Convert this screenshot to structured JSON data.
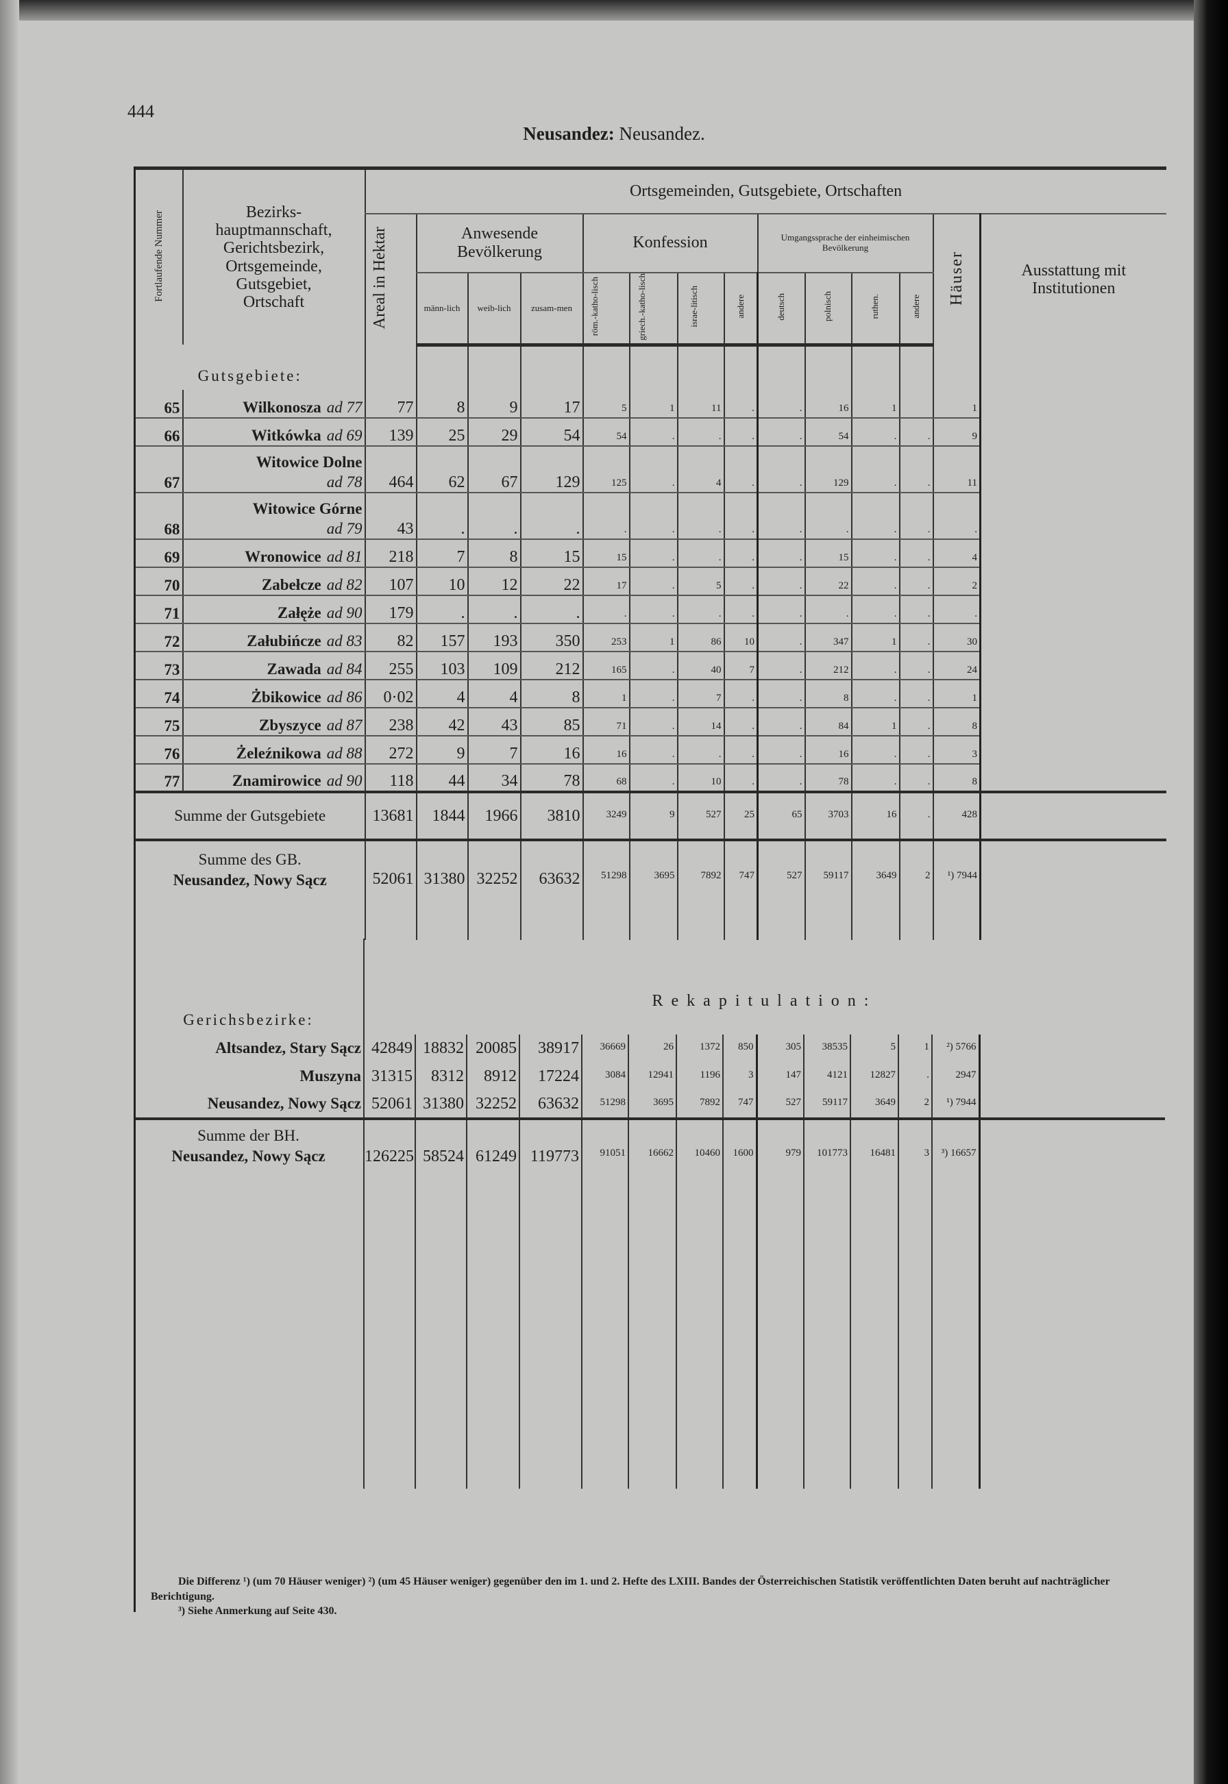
{
  "page_number": "444",
  "title": {
    "district": "Neusandez:",
    "court": "Neusandez."
  },
  "header": {
    "nr": "Fortlaufende Nummer",
    "name": [
      "Bezirks-",
      "hauptmannschaft,",
      "Gerichtsbezirk,",
      "Ortsgemeinde,",
      "Gutsgebiet,",
      "Ortschaft"
    ],
    "group": "Ortsgemeinden, Gutsgebiete, Ortschaften",
    "areal": "Areal in Hektar",
    "population": "Anwesende Bevölkerung",
    "pop_cols": [
      "männ-lich",
      "weib-lich",
      "zusam-men"
    ],
    "confession": "Konfession",
    "conf_cols": [
      "röm.-katho-lisch",
      "griech.-katho-lisch",
      "israe-litisch",
      "andere"
    ],
    "language": "Umgangssprache der einheimischen Bevölkerung",
    "lang_cols": [
      "deutsch",
      "polnisch",
      "ruthen.",
      "andere"
    ],
    "houses": "Häuser",
    "institutions": "Ausstattung mit Institutionen"
  },
  "section_label": "Gutsgebiete:",
  "rows": [
    {
      "nr": "65",
      "name": "Wilkonosza",
      "ad": "ad 77",
      "values": [
        "77",
        "8",
        "9",
        "17",
        "5",
        "1",
        "11",
        ".",
        ".",
        "16",
        "1",
        "",
        "1"
      ]
    },
    {
      "nr": "66",
      "name": "Witkówka",
      "ad": "ad 69",
      "values": [
        "139",
        "25",
        "29",
        "54",
        "54",
        ".",
        ".",
        ".",
        ".",
        "54",
        ".",
        ".",
        "9"
      ]
    },
    {
      "nr": "67",
      "name": "Witowice Dolne",
      "ad": "ad 78",
      "values": [
        "464",
        "62",
        "67",
        "129",
        "125",
        ".",
        "4",
        ".",
        ".",
        "129",
        ".",
        ".",
        "11"
      ]
    },
    {
      "nr": "68",
      "name": "Witowice Górne",
      "ad": "ad 79",
      "values": [
        "43",
        ".",
        ".",
        ".",
        ".",
        ".",
        ".",
        ".",
        ".",
        ".",
        ".",
        ".",
        "."
      ]
    },
    {
      "nr": "69",
      "name": "Wronowice",
      "ad": "ad 81",
      "values": [
        "218",
        "7",
        "8",
        "15",
        "15",
        ".",
        ".",
        ".",
        ".",
        "15",
        ".",
        ".",
        "4"
      ]
    },
    {
      "nr": "70",
      "name": "Zabełcze",
      "ad": "ad 82",
      "values": [
        "107",
        "10",
        "12",
        "22",
        "17",
        ".",
        "5",
        ".",
        ".",
        "22",
        ".",
        ".",
        "2"
      ]
    },
    {
      "nr": "71",
      "name": "Załęże",
      "ad": "ad 90",
      "values": [
        "179",
        ".",
        ".",
        ".",
        ".",
        ".",
        ".",
        ".",
        ".",
        ".",
        ".",
        ".",
        "."
      ]
    },
    {
      "nr": "72",
      "name": "Załubińcze",
      "ad": "ad 83",
      "values": [
        "82",
        "157",
        "193",
        "350",
        "253",
        "1",
        "86",
        "10",
        ".",
        "347",
        "1",
        ".",
        "30"
      ]
    },
    {
      "nr": "73",
      "name": "Zawada",
      "ad": "ad 84",
      "values": [
        "255",
        "103",
        "109",
        "212",
        "165",
        ".",
        "40",
        "7",
        ".",
        "212",
        ".",
        ".",
        "24"
      ]
    },
    {
      "nr": "74",
      "name": "Żbikowice",
      "ad": "ad 86",
      "values": [
        "0·02",
        "4",
        "4",
        "8",
        "1",
        ".",
        "7",
        ".",
        ".",
        "8",
        ".",
        ".",
        "1"
      ]
    },
    {
      "nr": "75",
      "name": "Zbyszyce",
      "ad": "ad 87",
      "values": [
        "238",
        "42",
        "43",
        "85",
        "71",
        ".",
        "14",
        ".",
        ".",
        "84",
        "1",
        ".",
        "8"
      ]
    },
    {
      "nr": "76",
      "name": "Żeleźnikowa",
      "ad": "ad 88",
      "values": [
        "272",
        "9",
        "7",
        "16",
        "16",
        ".",
        ".",
        ".",
        ".",
        "16",
        ".",
        ".",
        "3"
      ]
    },
    {
      "nr": "77",
      "name": "Znamirowice",
      "ad": "ad 90",
      "values": [
        "118",
        "44",
        "34",
        "78",
        "68",
        ".",
        "10",
        ".",
        ".",
        "78",
        ".",
        ".",
        "8"
      ]
    }
  ],
  "sum_gutsgebiete": {
    "label": "Summe der Gutsgebiete",
    "values": [
      "13681",
      "1844",
      "1966",
      "3810",
      "3249",
      "9",
      "527",
      "25",
      "65",
      "3703",
      "16",
      ".",
      "428"
    ]
  },
  "sum_gb": {
    "label": [
      "Summe des GB.",
      "Neusandez, Nowy Sącz"
    ],
    "values": [
      "52061",
      "31380",
      "32252",
      "63632",
      "51298",
      "3695",
      "7892",
      "747",
      "527",
      "59117",
      "3649",
      "2",
      "¹) 7944"
    ]
  },
  "recap": {
    "title": "Rekapitulation:",
    "label": "Gerichsbezirke:",
    "rows": [
      {
        "name": "Altsandez, Stary Sącz",
        "values": [
          "42849",
          "18832",
          "20085",
          "38917",
          "36669",
          "26",
          "1372",
          "850",
          "305",
          "38535",
          "5",
          "1",
          "²) 5766"
        ]
      },
      {
        "name": "Muszyna",
        "values": [
          "31315",
          "8312",
          "8912",
          "17224",
          "3084",
          "12941",
          "1196",
          "3",
          "147",
          "4121",
          "12827",
          ".",
          "2947"
        ]
      },
      {
        "name": "Neusandez, Nowy Sącz",
        "values": [
          "52061",
          "31380",
          "32252",
          "63632",
          "51298",
          "3695",
          "7892",
          "747",
          "527",
          "59117",
          "3649",
          "2",
          "¹) 7944"
        ]
      }
    ],
    "sum": {
      "label": [
        "Summe der BH.",
        "Neusandez, Nowy Sącz"
      ],
      "values": [
        "126225",
        "58524",
        "61249",
        "119773",
        "91051",
        "16662",
        "10460",
        "1600",
        "979",
        "101773",
        "16481",
        "3",
        "³) 16657"
      ]
    }
  },
  "footnotes": [
    "Die Differenz ¹) (um 70 Häuser weniger) ²) (um 45 Häuser weniger) gegenüber den im 1. und 2. Hefte des LXIII. Bandes der Österreichischen Statistik veröffentlichten Daten beruht auf nachträglicher Berichtigung.",
    "³) Siehe Anmerkung auf Seite 430."
  ]
}
